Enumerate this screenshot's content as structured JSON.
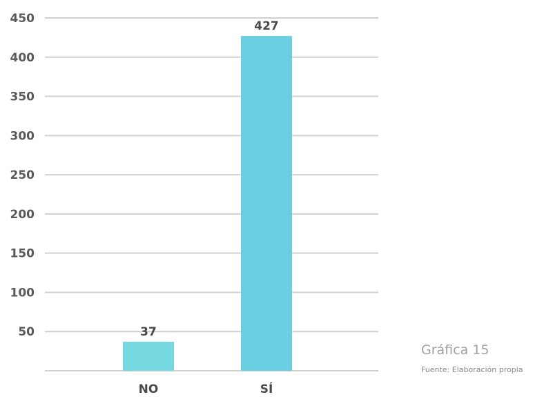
{
  "chart_data": {
    "type": "bar",
    "categories": [
      "NO",
      "SÍ"
    ],
    "values": [
      37,
      427
    ],
    "data_labels": [
      "37",
      "427"
    ],
    "yticks": [
      50,
      100,
      150,
      200,
      250,
      300,
      350,
      400,
      450
    ],
    "ylim": [
      0,
      450
    ],
    "grid": true,
    "title": "",
    "xlabel": "",
    "ylabel": "",
    "colors": [
      "#76d8e0",
      "#6bcfe2"
    ],
    "grid_color": "#d0d0d0"
  },
  "caption": {
    "title": "Gráfica 15",
    "source": "Fuente: Elaboración propia"
  }
}
